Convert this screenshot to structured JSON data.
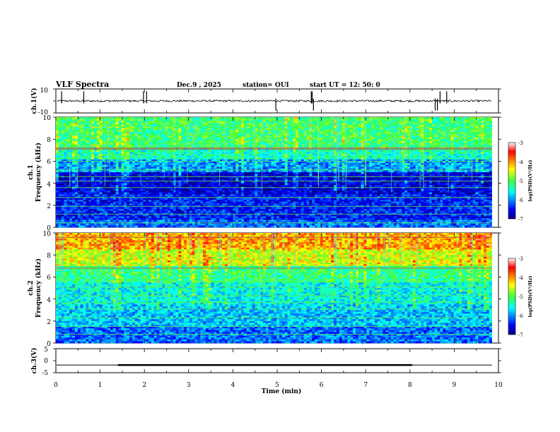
{
  "header": {
    "title": "VLF Spectra",
    "date": "Dec.9  , 2025",
    "station": "station= OUI",
    "start_ut": "start  UT  =   12: 50: 0"
  },
  "chart_data": [
    {
      "type": "line",
      "name": "ch1-waveform",
      "ylabel": "ch.1(V)",
      "ylim": [
        -10,
        10
      ],
      "yticks": [
        "10",
        "-10"
      ],
      "xlim": [
        0,
        10
      ],
      "baseline": 0,
      "spikes_min": [
        0.13,
        0.63,
        1.98,
        2.05,
        4.97,
        5.77,
        5.79,
        5.82,
        8.57,
        8.62,
        8.68,
        8.83
      ]
    },
    {
      "type": "heatmap",
      "name": "ch1-spectrogram",
      "ylabel": "ch.1\nFrequency (kHz)",
      "ylabel_lines": [
        "ch.1",
        "Frequency (kHz)"
      ],
      "ylim": [
        0,
        10
      ],
      "yticks": [
        "0",
        "2",
        "4",
        "6",
        "8",
        "10"
      ],
      "xlim": [
        0,
        9.85
      ],
      "colorbar": {
        "label": "log(PSD)(V²/Hz)",
        "range": [
          -7,
          -3
        ],
        "ticks": [
          "-3",
          "-4",
          "-5",
          "-6",
          "-7"
        ]
      },
      "lines_khz": [
        0.4,
        1.2,
        1.9,
        2.7,
        3.6,
        4.2,
        4.6,
        5.2,
        6.0,
        7.1,
        7.2
      ]
    },
    {
      "type": "heatmap",
      "name": "ch2-spectrogram",
      "ylabel": "ch.2\nFrequency (kHz)",
      "ylabel_lines": [
        "ch.2",
        "Frequency (kHz)"
      ],
      "ylim": [
        0,
        10
      ],
      "yticks": [
        "0",
        "2",
        "4",
        "6",
        "8",
        "10"
      ],
      "xlim": [
        0,
        9.85
      ],
      "colorbar": {
        "label": "log(PSD)(V²/Hz)",
        "range": [
          -7,
          -3
        ],
        "ticks": [
          "-3",
          "-4",
          "-5",
          "-6",
          "-7"
        ]
      },
      "lines_khz": [
        0.8,
        1.5,
        2.3,
        3.1,
        3.7,
        4.3,
        5.1,
        6.8,
        9.6
      ]
    },
    {
      "type": "line",
      "name": "ch3-waveform",
      "ylabel": "ch.3(V)",
      "ylim": [
        -5,
        5
      ],
      "yticks": [
        "5",
        "0",
        "-5"
      ],
      "xlim": [
        0,
        10
      ],
      "baseline": -1.8,
      "bold_segment_min": [
        1.4,
        8.05
      ],
      "xlabel": "Time (min)",
      "xticks": [
        "0",
        "1",
        "2",
        "3",
        "4",
        "5",
        "6",
        "7",
        "8",
        "9",
        "10"
      ]
    }
  ]
}
